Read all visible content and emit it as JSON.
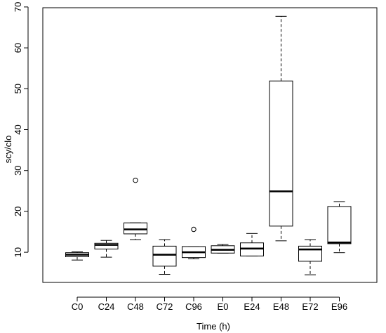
{
  "chart_data": {
    "type": "boxplot",
    "title": "",
    "xlabel": "Time (h)",
    "ylabel": "scy/clo",
    "ylim": [
      0,
      70
    ],
    "yticks": [
      10,
      20,
      30,
      40,
      50,
      60,
      70
    ],
    "grid": false,
    "categories": [
      "C0",
      "C24",
      "C48",
      "C72",
      "C96",
      "E0",
      "E24",
      "E48",
      "E72",
      "E96"
    ],
    "boxes": [
      {
        "min": 8.1,
        "q1": 8.9,
        "median": 9.4,
        "q3": 9.9,
        "max": 10.1,
        "outliers": []
      },
      {
        "min": 8.8,
        "q1": 10.8,
        "median": 11.8,
        "q3": 12.2,
        "max": 12.9,
        "outliers": []
      },
      {
        "min": 13.1,
        "q1": 14.5,
        "median": 15.6,
        "q3": 17.2,
        "max": 17.2,
        "outliers": [
          27.6
        ]
      },
      {
        "min": 4.6,
        "q1": 6.6,
        "median": 9.4,
        "q3": 11.5,
        "max": 13.1,
        "outliers": []
      },
      {
        "min": 8.4,
        "q1": 8.7,
        "median": 10.0,
        "q3": 11.4,
        "max": 11.4,
        "outliers": [
          15.6
        ]
      },
      {
        "min": 9.8,
        "q1": 9.8,
        "median": 10.6,
        "q3": 11.6,
        "max": 11.9,
        "outliers": []
      },
      {
        "min": 9.1,
        "q1": 9.1,
        "median": 10.9,
        "q3": 12.3,
        "max": 14.6,
        "outliers": []
      },
      {
        "min": 12.8,
        "q1": 16.4,
        "median": 24.9,
        "q3": 51.9,
        "max": 67.7,
        "outliers": []
      },
      {
        "min": 4.5,
        "q1": 7.8,
        "median": 10.7,
        "q3": 11.5,
        "max": 13.1,
        "outliers": []
      },
      {
        "min": 9.9,
        "q1": 12.1,
        "median": 12.4,
        "q3": 21.2,
        "max": 22.4,
        "outliers": []
      }
    ]
  }
}
